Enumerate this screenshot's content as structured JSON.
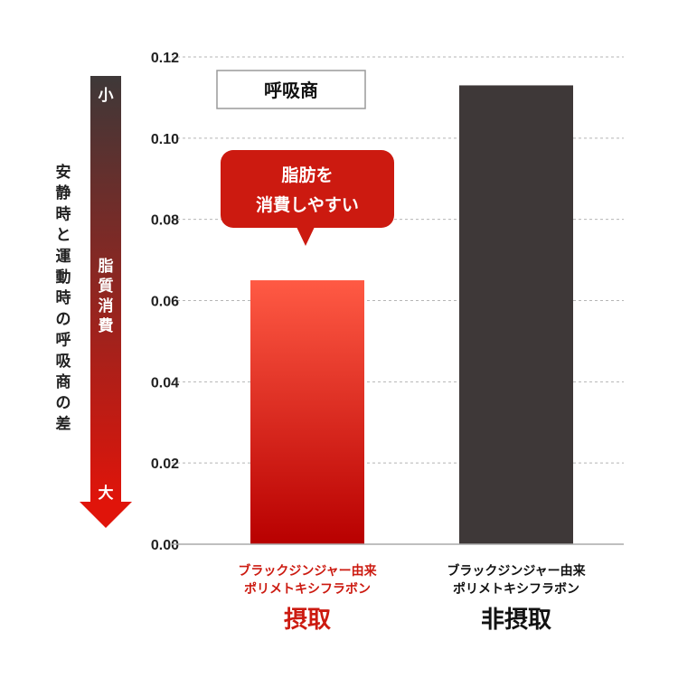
{
  "chart_data": {
    "type": "bar",
    "categories": [
      "摂取",
      "非摂取"
    ],
    "category_sublabels": [
      [
        "ブラックジンジャー由来",
        "ポリメトキシフラボン"
      ],
      [
        "ブラックジンジャー由来",
        "ポリメトキシフラボン"
      ]
    ],
    "values": [
      0.065,
      0.113
    ],
    "ylim": [
      0,
      0.12
    ],
    "yticks": [
      "0.00",
      "0.02",
      "0.04",
      "0.06",
      "0.08",
      "0.10",
      "0.12"
    ],
    "grid": true,
    "title": "呼吸商",
    "ylabel": "安静時と運動時の呼吸商の差",
    "annotation": [
      "脂肪を",
      "消費しやすい"
    ],
    "scale_arrow": {
      "top": "小",
      "bottom": "大",
      "middle": [
        "脂",
        "質",
        "消",
        "費"
      ]
    },
    "colors": {
      "intake_top": "#ff5a44",
      "intake_bottom": "#b80000",
      "non_intake": "#3e3838",
      "accent_red": "#cc1a10",
      "arrow_top": "#3e3838",
      "arrow_bottom": "#e0140a"
    }
  }
}
